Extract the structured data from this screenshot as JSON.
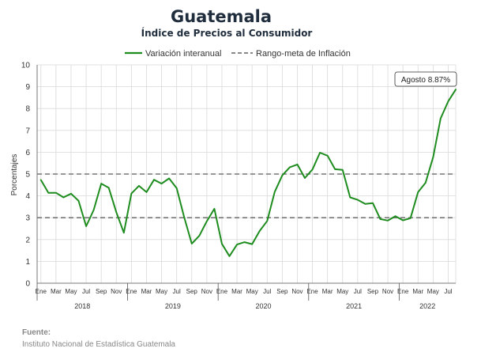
{
  "chart_data": {
    "type": "line",
    "title": "Guatemala",
    "subtitle": "Índice de Precios al Consumidor",
    "ylabel": "Porcentajes",
    "ylim": [
      0,
      10
    ],
    "yticks": [
      0,
      1,
      2,
      3,
      4,
      5,
      6,
      7,
      8,
      9,
      10
    ],
    "grid": true,
    "legend_position": "top-center",
    "month_labels": [
      "Ene",
      "Mar",
      "May",
      "Jul",
      "Sep",
      "Nov"
    ],
    "years": [
      "2018",
      "2019",
      "2020",
      "2021",
      "2022"
    ],
    "start": "2018-01",
    "series": [
      {
        "name": "Variación interanual",
        "color": "#1e8c1e",
        "values": [
          4.73,
          4.14,
          4.14,
          3.93,
          4.1,
          3.77,
          2.61,
          3.35,
          4.56,
          4.37,
          3.25,
          2.31,
          4.11,
          4.46,
          4.17,
          4.74,
          4.56,
          4.8,
          4.35,
          3.02,
          1.81,
          2.17,
          2.84,
          3.41,
          1.8,
          1.24,
          1.77,
          1.88,
          1.79,
          2.39,
          2.85,
          4.18,
          4.94,
          5.31,
          5.44,
          4.82,
          5.21,
          5.98,
          5.84,
          5.22,
          5.19,
          3.93,
          3.82,
          3.63,
          3.67,
          2.94,
          2.87,
          3.07,
          2.88,
          2.98,
          4.17,
          4.6,
          5.77,
          7.55,
          8.33,
          8.87
        ]
      },
      {
        "name": "Rango-meta de Inflación",
        "color": "#777777",
        "bounds": [
          3,
          5
        ]
      }
    ],
    "annotation": "Agosto 8.87%",
    "source_label": "Fuente:",
    "source": "Instituto Nacional de Estadística Guatemala"
  }
}
